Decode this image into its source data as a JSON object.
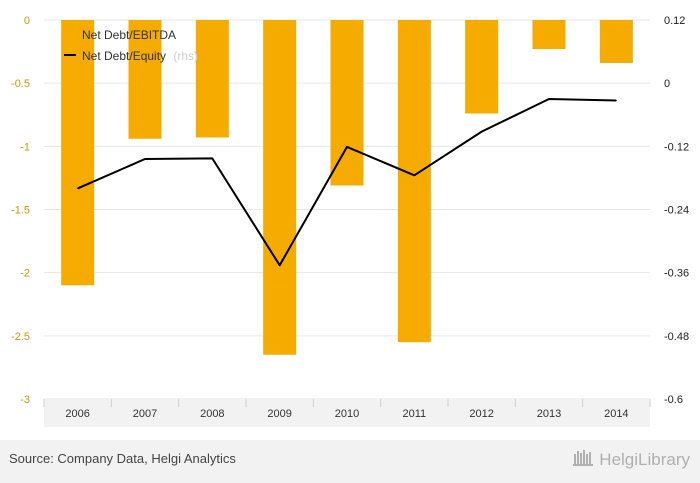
{
  "chart_data": {
    "type": "bar+line",
    "categories": [
      "2006",
      "2007",
      "2008",
      "2009",
      "2010",
      "2011",
      "2012",
      "2013",
      "2014"
    ],
    "series": [
      {
        "name": "Net Debt/EBITDA",
        "type": "bar",
        "axis": "left",
        "color": "#f5ab00",
        "values": [
          -2.1,
          -0.94,
          -0.93,
          -2.65,
          -1.31,
          -2.55,
          -0.74,
          -0.23,
          -0.34
        ]
      },
      {
        "name": "Net Debt/Equity",
        "type": "line",
        "axis": "right",
        "color": "#000000",
        "values": [
          -0.2,
          -0.144,
          -0.143,
          -0.346,
          -0.121,
          -0.175,
          -0.092,
          -0.03,
          -0.033
        ]
      }
    ],
    "y_left": {
      "ticks": [
        0,
        -0.5,
        -1,
        -1.5,
        -2,
        -2.5,
        -3
      ],
      "tick_labels": [
        "0",
        "-0.5",
        "-1",
        "-1.5",
        "-2",
        "-2.5",
        "-3"
      ],
      "ylim": [
        -3,
        0
      ]
    },
    "y_right": {
      "ticks": [
        0.12,
        0,
        -0.12,
        -0.24,
        -0.36,
        -0.48,
        -0.6
      ],
      "tick_labels": [
        "0.12",
        "0",
        "-0.12",
        "-0.24",
        "-0.36",
        "-0.48",
        "-0.6"
      ],
      "ylim": [
        -0.6,
        0.12
      ]
    },
    "legend_position": "top-left",
    "grid": true
  },
  "legend": {
    "bar_label": "Net Debt/EBITDA",
    "line_label": "Net Debt/Equity",
    "line_suffix": "(rhs)"
  },
  "footer": {
    "source": "Source: Company Data, Helgi Analytics",
    "logo_text": "HelgiLibrary"
  }
}
